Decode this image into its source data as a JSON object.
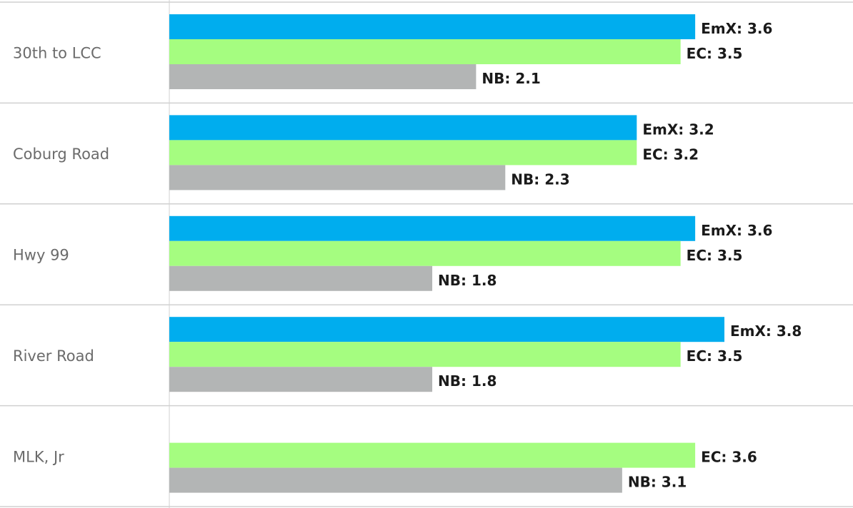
{
  "chart_data": {
    "type": "bar",
    "orientation": "horizontal",
    "categories": [
      "30th to LCC",
      "Coburg Road",
      "Hwy 99",
      "River Road",
      "MLK, Jr"
    ],
    "series": [
      {
        "name": "EmX",
        "color": "#00adee",
        "values": [
          3.6,
          3.2,
          3.6,
          3.8,
          null
        ],
        "value_labels": [
          "EmX: 3.6",
          "EmX: 3.2",
          "EmX: 3.6",
          "EmX: 3.8",
          null
        ]
      },
      {
        "name": "EC",
        "color": "#a5fd80",
        "values": [
          3.5,
          3.2,
          3.5,
          3.5,
          3.6
        ],
        "value_labels": [
          "EC: 3.5",
          "EC: 3.2",
          "EC: 3.5",
          "EC: 3.5",
          "EC: 3.6"
        ]
      },
      {
        "name": "NB",
        "color": "#b3b5b5",
        "values": [
          2.1,
          2.3,
          1.8,
          1.8,
          3.1
        ],
        "value_labels": [
          "NB: 2.1",
          "NB: 2.3",
          "NB: 1.8",
          "NB: 1.8",
          "NB: 3.1"
        ]
      }
    ]
  }
}
